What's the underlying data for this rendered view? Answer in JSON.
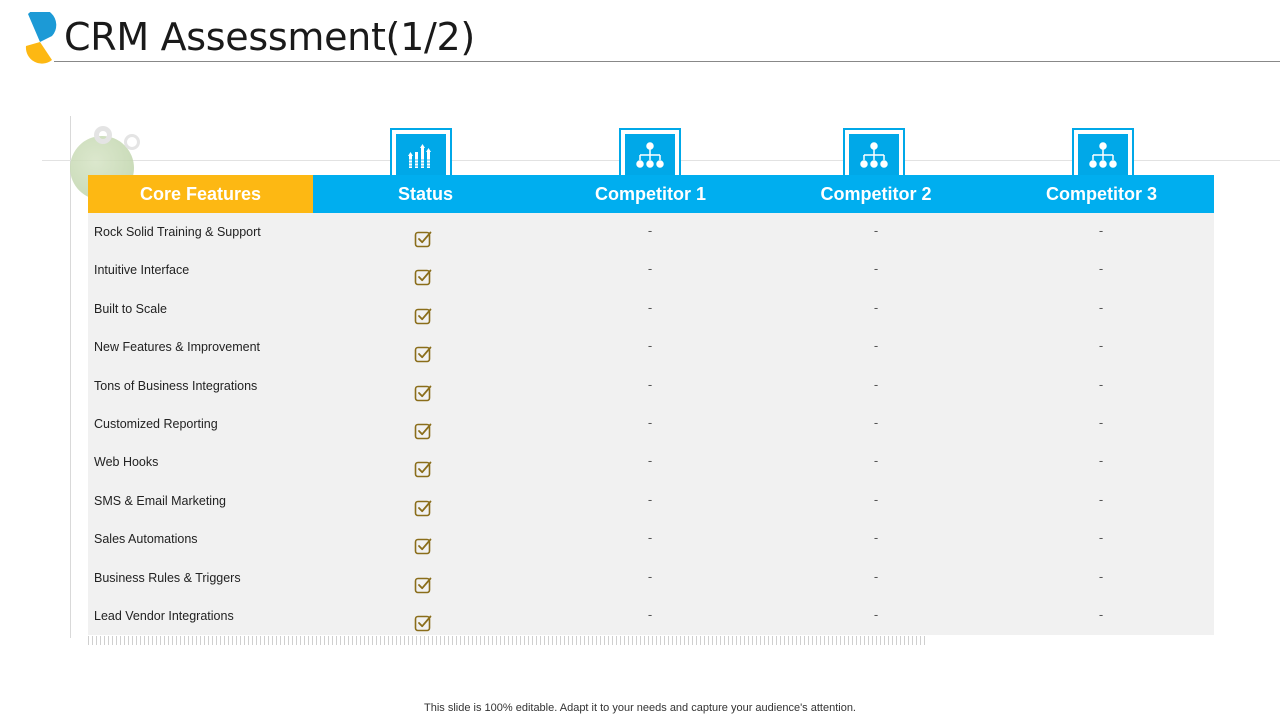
{
  "page": {
    "title": "CRM Assessment(1/2)",
    "footer": "This slide is 100% editable. Adapt it to your needs and capture your audience's attention."
  },
  "colors": {
    "header_yellow": "#fdb813",
    "header_blue": "#00aeef",
    "check_gold": "#8a6d1a",
    "row_bg": "#f1f1f1"
  },
  "table": {
    "headers": {
      "core": "Core Features",
      "status": "Status",
      "competitor1": "Competitor 1",
      "competitor2": "Competitor 2",
      "competitor3": "Competitor 3"
    },
    "header_icons": [
      "bar-chart-icon",
      "hierarchy-icon",
      "hierarchy-icon",
      "hierarchy-icon"
    ],
    "rows": [
      {
        "feature": "Rock Solid Training & Support",
        "status": "checked",
        "c1": "-",
        "c2": "-",
        "c3": "-"
      },
      {
        "feature": "Intuitive Interface",
        "status": "checked",
        "c1": "-",
        "c2": "-",
        "c3": "-"
      },
      {
        "feature": "Built to Scale",
        "status": "checked",
        "c1": "-",
        "c2": "-",
        "c3": "-"
      },
      {
        "feature": "New Features & Improvement",
        "status": "checked",
        "c1": "-",
        "c2": "-",
        "c3": "-"
      },
      {
        "feature": "Tons of Business Integrations",
        "status": "checked",
        "c1": "-",
        "c2": "-",
        "c3": "-"
      },
      {
        "feature": "Customized Reporting",
        "status": "checked",
        "c1": "-",
        "c2": "-",
        "c3": "-"
      },
      {
        "feature": "Web Hooks",
        "status": "checked",
        "c1": "-",
        "c2": "-",
        "c3": "-"
      },
      {
        "feature": "SMS & Email Marketing",
        "status": "checked",
        "c1": "-",
        "c2": "-",
        "c3": "-"
      },
      {
        "feature": "Sales Automations",
        "status": "checked",
        "c1": "-",
        "c2": "-",
        "c3": "-"
      },
      {
        "feature": "Business Rules & Triggers",
        "status": "checked",
        "c1": "-",
        "c2": "-",
        "c3": "-"
      },
      {
        "feature": "Lead Vendor Integrations",
        "status": "checked",
        "c1": "-",
        "c2": "-",
        "c3": "-"
      }
    ]
  }
}
